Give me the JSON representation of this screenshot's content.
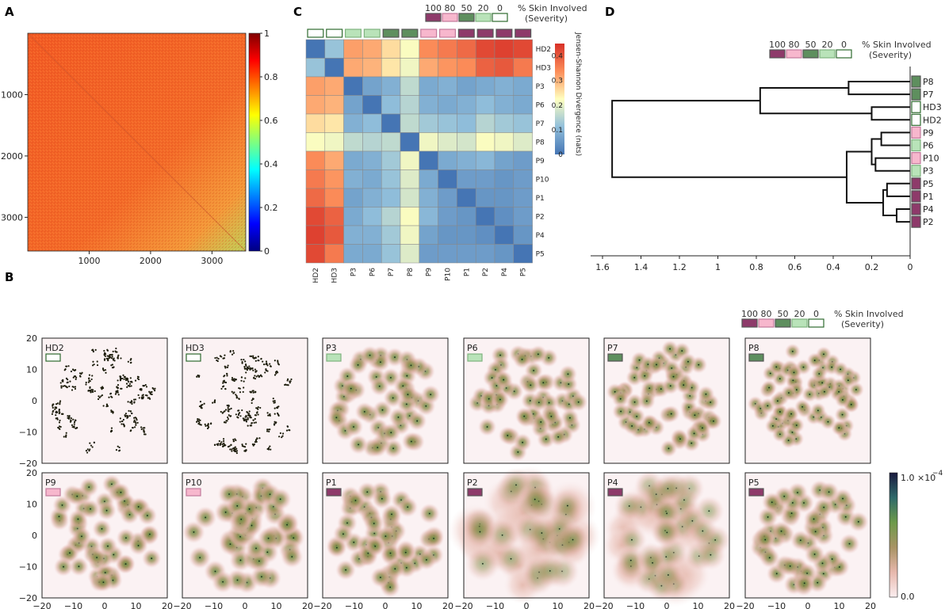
{
  "panels": {
    "a": "A",
    "b": "B",
    "c": "C",
    "d": "D"
  },
  "colors": {
    "sev100": "#8e3a6a",
    "sev80": "#f7b7cd",
    "sev50": "#5e8f5e",
    "sev20": "#b9e3b9",
    "sev0": "#ffffff",
    "sev0_border": "#2f6b2f",
    "dendro": "#111111"
  },
  "severity_legend": {
    "levels": [
      "100",
      "80",
      "50",
      "20",
      "0"
    ],
    "label": "% Skin Involved",
    "sublabel": "(Severity)"
  },
  "chart_data": [
    {
      "id": "A",
      "type": "heatmap",
      "title": "",
      "x_ticks": [
        "1000",
        "2000",
        "3000"
      ],
      "y_ticks": [
        "1000",
        "2000",
        "3000"
      ],
      "xlim": [
        0,
        3550
      ],
      "ylim": [
        0,
        3550
      ],
      "colorbar_ticks": [
        "0",
        "0.2",
        "0.4",
        "0.6",
        "0.8",
        "1"
      ],
      "colorbar_range": [
        0,
        1
      ],
      "dominant_value": 0.8,
      "note": "self-similarity matrix; values ~0.8 overall, lower (~0.65) near bottom-right corner, diagonal = 1"
    },
    {
      "id": "C",
      "type": "heatmap",
      "labels": [
        "HD2",
        "HD3",
        "P3",
        "P6",
        "P7",
        "P8",
        "P9",
        "P10",
        "P1",
        "P2",
        "P4",
        "P5"
      ],
      "severity": [
        0,
        0,
        20,
        20,
        50,
        50,
        80,
        80,
        100,
        100,
        100,
        100
      ],
      "values": [
        [
          0.0,
          0.12,
          0.32,
          0.31,
          0.26,
          0.22,
          0.34,
          0.36,
          0.38,
          0.42,
          0.43,
          0.42
        ],
        [
          0.12,
          0.0,
          0.31,
          0.3,
          0.25,
          0.21,
          0.31,
          0.33,
          0.34,
          0.39,
          0.4,
          0.36
        ],
        [
          0.32,
          0.31,
          0.0,
          0.07,
          0.09,
          0.16,
          0.08,
          0.09,
          0.07,
          0.08,
          0.09,
          0.08
        ],
        [
          0.31,
          0.3,
          0.07,
          0.0,
          0.11,
          0.15,
          0.09,
          0.08,
          0.09,
          0.11,
          0.09,
          0.08
        ],
        [
          0.26,
          0.25,
          0.09,
          0.11,
          0.0,
          0.16,
          0.13,
          0.12,
          0.11,
          0.15,
          0.13,
          0.12
        ],
        [
          0.22,
          0.21,
          0.16,
          0.15,
          0.16,
          0.0,
          0.21,
          0.19,
          0.18,
          0.22,
          0.21,
          0.19
        ],
        [
          0.34,
          0.31,
          0.08,
          0.09,
          0.13,
          0.21,
          0.0,
          0.08,
          0.09,
          0.1,
          0.07,
          0.06
        ],
        [
          0.36,
          0.33,
          0.09,
          0.08,
          0.12,
          0.19,
          0.08,
          0.0,
          0.06,
          0.06,
          0.05,
          0.06
        ],
        [
          0.38,
          0.34,
          0.07,
          0.09,
          0.11,
          0.18,
          0.09,
          0.06,
          0.0,
          0.05,
          0.05,
          0.06
        ],
        [
          0.42,
          0.39,
          0.08,
          0.11,
          0.15,
          0.22,
          0.1,
          0.06,
          0.05,
          0.0,
          0.04,
          0.06
        ],
        [
          0.43,
          0.4,
          0.09,
          0.09,
          0.13,
          0.21,
          0.07,
          0.05,
          0.05,
          0.04,
          0.0,
          0.05
        ],
        [
          0.42,
          0.36,
          0.08,
          0.08,
          0.12,
          0.19,
          0.06,
          0.06,
          0.06,
          0.06,
          0.05,
          0.0
        ]
      ],
      "colorbar_label": "Jensen-Shannon Divergence (nats)",
      "colorbar_ticks": [
        "0",
        "0.1",
        "0.2",
        "0.3",
        "0.4"
      ],
      "colorbar_range": [
        0,
        0.45
      ]
    },
    {
      "id": "D",
      "type": "dendrogram",
      "leaves": [
        "P8",
        "P7",
        "HD3",
        "HD2",
        "P9",
        "P6",
        "P10",
        "P3",
        "P5",
        "P1",
        "P4",
        "P2"
      ],
      "leaf_severity": [
        50,
        50,
        0,
        0,
        80,
        20,
        80,
        20,
        100,
        100,
        100,
        100
      ],
      "merges": [
        {
          "a": "P8",
          "b": "P7",
          "height": 0.32
        },
        {
          "a": "HD3",
          "b": "HD2",
          "height": 0.2
        },
        {
          "a": "P10",
          "b": "P3",
          "height": 0.18
        },
        {
          "a": "P9",
          "b": "P6",
          "height": 0.15
        },
        {
          "a": "P9+P6",
          "b": "P10+P3",
          "height": 0.2
        },
        {
          "a": "P4",
          "b": "P2",
          "height": 0.07
        },
        {
          "a": "P5",
          "b": "P1",
          "height": 0.12
        },
        {
          "a": "P5+P1",
          "b": "P4+P2",
          "height": 0.14
        },
        {
          "a": "P9..P3",
          "b": "P5..P2",
          "height": 0.33
        },
        {
          "a": "P8+P7",
          "b": "HD3+HD2",
          "height": 0.78
        },
        {
          "a": "all_top",
          "b": "all_bottom",
          "height": 1.55
        }
      ],
      "x_ticks": [
        "1.6",
        "1.4",
        "1.2",
        "1",
        "0.8",
        "0.6",
        "0.4",
        "0.2",
        "0"
      ],
      "xlim": [
        1.65,
        0
      ]
    },
    {
      "id": "B",
      "type": "scatter",
      "subplots": [
        {
          "label": "HD2",
          "severity": 0,
          "n_clusters": 80,
          "blur": 0.6
        },
        {
          "label": "HD3",
          "severity": 0,
          "n_clusters": 80,
          "blur": 0.6
        },
        {
          "label": "P3",
          "severity": 20,
          "n_clusters": 55,
          "blur": 2.0
        },
        {
          "label": "P6",
          "severity": 20,
          "n_clusters": 60,
          "blur": 1.8
        },
        {
          "label": "P7",
          "severity": 50,
          "n_clusters": 70,
          "blur": 1.6
        },
        {
          "label": "P8",
          "severity": 50,
          "n_clusters": 80,
          "blur": 1.3
        },
        {
          "label": "P9",
          "severity": 80,
          "n_clusters": 55,
          "blur": 2.0
        },
        {
          "label": "P10",
          "severity": 80,
          "n_clusters": 50,
          "blur": 2.6
        },
        {
          "label": "P1",
          "severity": 100,
          "n_clusters": 55,
          "blur": 2.2
        },
        {
          "label": "P2",
          "severity": 100,
          "n_clusters": 30,
          "blur": 5.0
        },
        {
          "label": "P4",
          "severity": 100,
          "n_clusters": 35,
          "blur": 4.2
        },
        {
          "label": "P5",
          "severity": 100,
          "n_clusters": 55,
          "blur": 2.2
        }
      ],
      "x_ticks": [
        "−20",
        "−10",
        "0",
        "10",
        "20"
      ],
      "y_ticks": [
        "20",
        "10",
        "0",
        "−10",
        "−20"
      ],
      "xlim": [
        -20,
        20
      ],
      "ylim": [
        -20,
        20
      ],
      "colorbar_ticks": [
        "0.0",
        "1.0 ×10"
      ],
      "colorbar_exponent": "−4",
      "colorbar_range": [
        0,
        0.0001
      ]
    }
  ]
}
